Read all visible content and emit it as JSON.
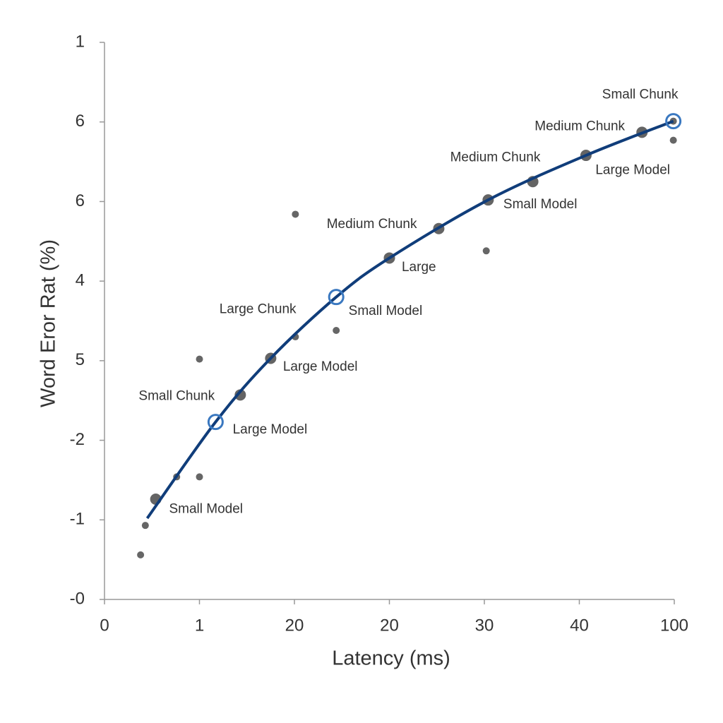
{
  "chart_data": {
    "type": "scatter",
    "x_label": "Latency (ms)",
    "y_label": "Word Eror Rat (%)",
    "xlim": [
      0,
      6
    ],
    "ylim": [
      0,
      7
    ],
    "xticks": [
      0,
      1,
      {
        "value": 2,
        "label": "20"
      },
      {
        "value": 3,
        "label": "20"
      },
      {
        "value": 4,
        "label": "30"
      },
      {
        "value": 5,
        "label": "40"
      },
      {
        "value": 6,
        "label": "100"
      }
    ],
    "yticks": [
      {
        "value": 0,
        "label": "-0"
      },
      {
        "value": 1,
        "label": "-1"
      },
      {
        "value": 2,
        "label": "-2"
      },
      {
        "value": 3,
        "label": "5"
      },
      4,
      {
        "value": 5,
        "label": "6"
      },
      {
        "value": 6,
        "label": "6"
      },
      {
        "value": 7,
        "label": "1"
      }
    ],
    "series": [
      {
        "type": "scatter",
        "color": "#646464",
        "marker_size": 8,
        "x": [
          0.54,
          1.43,
          1.75,
          3.0,
          3.52,
          4.04,
          4.51,
          5.07,
          5.66
        ],
        "values": [
          1.26,
          2.57,
          3.03,
          4.29,
          4.66,
          5.02,
          5.25,
          5.58,
          5.87
        ]
      },
      {
        "type": "scatter",
        "color": "#666666",
        "marker_size": 5,
        "x": [
          0.43,
          0.38,
          0.76,
          1.0,
          1.0,
          2.01,
          2.01,
          2.44,
          4.02,
          5.99,
          5.99
        ],
        "values": [
          0.93,
          0.56,
          1.54,
          1.54,
          3.02,
          4.84,
          3.3,
          3.38,
          4.38,
          5.77,
          6.01
        ]
      },
      {
        "type": "line",
        "color": "#103d7a",
        "x": [
          0.45,
          1.17,
          1.75,
          2.44,
          3.0,
          4.04,
          5.07,
          5.99
        ],
        "values": [
          1.02,
          2.23,
          3.03,
          3.8,
          4.29,
          5.02,
          5.58,
          6.01
        ]
      },
      {
        "type": "ring",
        "color": "#3a78c0",
        "marker_size": 10,
        "x": [
          1.17,
          2.44,
          5.99
        ],
        "values": [
          2.23,
          3.8,
          6.01
        ]
      }
    ],
    "annotations": [
      {
        "text": "Small Chunk",
        "x": 5.24,
        "y": 6.34
      },
      {
        "text": "Medium Chunk",
        "x": 4.53,
        "y": 5.94
      },
      {
        "text": "Medium Chunk",
        "x": 3.64,
        "y": 5.55
      },
      {
        "text": "Large Model",
        "x": 5.17,
        "y": 5.39
      },
      {
        "text": "Small Model",
        "x": 4.2,
        "y": 4.96
      },
      {
        "text": "Medium Chunk",
        "x": 2.34,
        "y": 4.71
      },
      {
        "text": "Large",
        "x": 3.13,
        "y": 4.17
      },
      {
        "text": "Large Chunk",
        "x": 1.21,
        "y": 3.64
      },
      {
        "text": "Small Model",
        "x": 2.57,
        "y": 3.62
      },
      {
        "text": "Large Model",
        "x": 1.88,
        "y": 2.92
      },
      {
        "text": "Small Chunk",
        "x": 0.36,
        "y": 2.55
      },
      {
        "text": "Large Model",
        "x": 1.35,
        "y": 2.13
      },
      {
        "text": "Small Model",
        "x": 0.68,
        "y": 1.13
      }
    ]
  }
}
